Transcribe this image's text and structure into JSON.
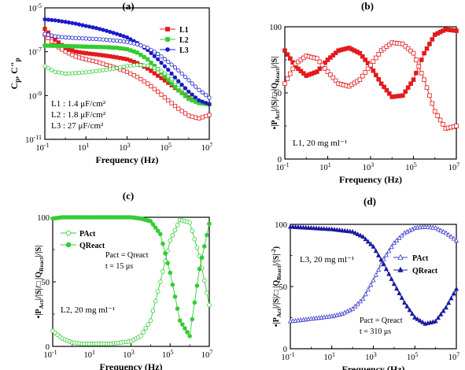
{
  "chart_data": [
    {
      "id": "a",
      "type": "scatter",
      "title": "(a)",
      "xlabel": "Frequency (Hz)",
      "ylabel": "C'p, C\"p",
      "xscale": "log",
      "yscale": "log",
      "xlim": [
        0.1,
        10000000
      ],
      "ylim": [
        1e-11,
        1e-05
      ],
      "xticks": [
        {
          "v": 0.1,
          "b": "10",
          "e": "-1"
        },
        {
          "v": 10,
          "b": "10",
          "e": "1"
        },
        {
          "v": 1000,
          "b": "10",
          "e": "3"
        },
        {
          "v": 100000,
          "b": "10",
          "e": "5"
        },
        {
          "v": 10000000,
          "b": "10",
          "e": "7"
        }
      ],
      "yticks": [
        {
          "v": 1e-11,
          "b": "10",
          "e": "-11"
        },
        {
          "v": 1e-09,
          "b": "10",
          "e": "-9"
        },
        {
          "v": 1e-07,
          "b": "10",
          "e": "-7"
        },
        {
          "v": 1e-05,
          "b": "10",
          "e": "-5"
        }
      ],
      "legend": "top-right",
      "annotations": [
        "L1 : 1.4 μF/cm²",
        "L2 : 1.8 μF/cm²",
        "L3 : 27 μF/cm²"
      ],
      "series": [
        {
          "name": "L1",
          "color": "#e31a1c",
          "marker": "square",
          "fill": true,
          "x": [
            0.1,
            0.316,
            1,
            3.16,
            10,
            31.6,
            100,
            316,
            1000,
            3160,
            10000,
            31600,
            100000,
            316000,
            1000000,
            3160000,
            10000000
          ],
          "y": [
            1.1e-06,
            3.5e-07,
            1.5e-07,
            1e-07,
            8.5e-08,
            7.5e-08,
            6.5e-08,
            5.5e-08,
            4.5e-08,
            3e-08,
            1.7e-08,
            8e-09,
            3.8e-09,
            1.7e-09,
            8e-10,
            5e-10,
            4e-10
          ]
        },
        {
          "name": "",
          "color": "#e31a1c",
          "marker": "square",
          "fill": false,
          "x": [
            0.1,
            0.316,
            1,
            3.16,
            10,
            31.6,
            100,
            316,
            1000,
            3160,
            10000,
            31600,
            100000,
            316000,
            1000000,
            3160000,
            10000000
          ],
          "y": [
            6e-07,
            2e-07,
            1e-07,
            6e-08,
            4.5e-08,
            3.5e-08,
            2.5e-08,
            1.8e-08,
            1.2e-08,
            7e-09,
            3.5e-09,
            1.5e-09,
            6e-10,
            2.5e-10,
            1.2e-10,
            9e-11,
            1.3e-10
          ]
        },
        {
          "name": "L2",
          "color": "#33cc33",
          "marker": "square",
          "fill": true,
          "x": [
            0.1,
            0.316,
            1,
            3.16,
            10,
            31.6,
            100,
            316,
            1000,
            3160,
            10000,
            31600,
            100000,
            316000,
            1000000,
            3160000,
            10000000
          ],
          "y": [
            1.9e-07,
            1.85e-07,
            1.8e-07,
            1.75e-07,
            1.7e-07,
            1.65e-07,
            1.6e-07,
            1.5e-07,
            1.3e-07,
            9e-08,
            4.5e-08,
            1.6e-08,
            5e-09,
            1.7e-09,
            7e-10,
            4.5e-10,
            4e-10
          ]
        },
        {
          "name": "",
          "color": "#33cc33",
          "marker": "circle",
          "fill": false,
          "x": [
            0.1,
            0.316,
            1,
            3.16,
            10,
            31.6,
            100,
            316,
            1000,
            3160,
            10000,
            31600,
            100000,
            316000,
            1000000,
            3160000,
            10000000
          ],
          "y": [
            2.2e-08,
            1.2e-08,
            1e-08,
            1.05e-08,
            1.15e-08,
            1.3e-08,
            1.5e-08,
            1.8e-08,
            2.2e-08,
            2.5e-08,
            2.3e-08,
            1.6e-08,
            8e-09,
            3e-09,
            1.2e-09,
            6e-10,
            4e-10
          ]
        },
        {
          "name": "L3",
          "color": "#1a1acc",
          "marker": "circle",
          "fill": true,
          "x": [
            0.1,
            0.316,
            1,
            3.16,
            10,
            31.6,
            100,
            316,
            1000,
            3160,
            10000,
            31600,
            100000,
            316000,
            1000000,
            3160000,
            10000000
          ],
          "y": [
            3e-06,
            2.7e-06,
            2.3e-06,
            1.9e-06,
            1.5e-06,
            1.2e-06,
            9e-07,
            6.5e-07,
            4.5e-07,
            2.5e-07,
            1.2e-07,
            4.5e-08,
            1.5e-08,
            4.5e-09,
            1.5e-09,
            6e-10,
            4e-10
          ]
        },
        {
          "name": "",
          "color": "#1a1acc",
          "marker": "circle",
          "fill": false,
          "x": [
            0.1,
            0.316,
            1,
            3.16,
            10,
            31.6,
            100,
            316,
            1000,
            3160,
            10000,
            31600,
            100000,
            316000,
            1000000,
            3160000,
            10000000
          ],
          "y": [
            6.5e-07,
            5e-07,
            4.5e-07,
            4.2e-07,
            4e-07,
            3.8e-07,
            3.5e-07,
            3.2e-07,
            2.8e-07,
            2.2e-07,
            1.5e-07,
            8e-08,
            3.5e-08,
            1.4e-08,
            5e-09,
            1.8e-09,
            8e-10
          ]
        }
      ]
    },
    {
      "id": "b",
      "type": "line",
      "title": "(b)",
      "xlabel": "Frequency (Hz)",
      "ylabel": "▪|PAct|/|S|/□ |QReact|/|S|",
      "xscale": "log",
      "xlim": [
        0.1,
        10000000
      ],
      "ylim": [
        0,
        100
      ],
      "xticks": [
        {
          "v": 0.1,
          "b": "10",
          "e": "-1"
        },
        {
          "v": 10,
          "b": "10",
          "e": "1"
        },
        {
          "v": 1000,
          "b": "10",
          "e": "3"
        },
        {
          "v": 100000,
          "b": "10",
          "e": "5"
        },
        {
          "v": 10000000,
          "b": "10",
          "e": "7"
        }
      ],
      "yticks": [
        0,
        50,
        100
      ],
      "annotations": [
        "L1, 20 mg ml⁻¹"
      ],
      "series": [
        {
          "name": "",
          "color": "#e31a1c",
          "marker": "square",
          "fill": true,
          "x": [
            0.1,
            0.316,
            1,
            3.16,
            10,
            31.6,
            100,
            316,
            1000,
            3160,
            10000,
            31600,
            100000,
            316000,
            1000000,
            3160000,
            10000000
          ],
          "y": [
            82,
            70,
            63,
            66,
            75,
            82,
            84,
            80,
            70,
            57,
            47,
            48,
            60,
            80,
            94,
            98,
            97
          ]
        },
        {
          "name": "",
          "color": "#e31a1c",
          "marker": "square",
          "fill": false,
          "x": [
            0.1,
            0.316,
            1,
            3.16,
            10,
            31.6,
            100,
            316,
            1000,
            3160,
            10000,
            31600,
            100000,
            316000,
            1000000,
            3160000,
            10000000
          ],
          "y": [
            57,
            72,
            78,
            76,
            66,
            57,
            55,
            60,
            71,
            82,
            88,
            87,
            80,
            60,
            36,
            23,
            25
          ]
        }
      ]
    },
    {
      "id": "c",
      "type": "line",
      "title": "(c)",
      "xlabel": "Frequency (Hz)",
      "ylabel": "▪|PAct|/|S|/□ |QReact|/|S|",
      "xscale": "log",
      "xlim": [
        0.1,
        10000000
      ],
      "ylim": [
        0,
        100
      ],
      "xticks": [
        {
          "v": 0.1,
          "b": "10",
          "e": "-1"
        },
        {
          "v": 10,
          "b": "10",
          "e": "1"
        },
        {
          "v": 1000,
          "b": "10",
          "e": "3"
        },
        {
          "v": 100000,
          "b": "10",
          "e": "5"
        },
        {
          "v": 10000000,
          "b": "10",
          "e": "7"
        }
      ],
      "yticks": [
        0,
        50,
        100
      ],
      "legend": "top-left",
      "annotations": [
        "Pact = Qreact",
        "t = 15 μs",
        "L2, 20 mg ml⁻¹"
      ],
      "series": [
        {
          "name": "PAct",
          "color": "#33cc33",
          "marker": "circle",
          "fill": false,
          "x": [
            0.1,
            0.316,
            1,
            3.16,
            10,
            31.6,
            100,
            316,
            1000,
            3160,
            10000,
            31600,
            100000,
            316000,
            1000000,
            3160000,
            10000000
          ],
          "y": [
            12,
            6,
            3,
            2,
            2,
            2,
            2,
            3,
            4,
            8,
            20,
            50,
            82,
            98,
            96,
            70,
            32
          ]
        },
        {
          "name": "QReact",
          "color": "#33cc33",
          "marker": "circle",
          "fill": true,
          "x": [
            0.1,
            0.316,
            1,
            3.16,
            10,
            31.6,
            100,
            316,
            1000,
            3160,
            10000,
            31600,
            100000,
            316000,
            1000000,
            3160000,
            10000000
          ],
          "y": [
            99,
            100,
            100,
            100,
            100,
            100,
            100,
            100,
            100,
            99,
            97,
            87,
            57,
            20,
            8,
            60,
            95
          ]
        }
      ]
    },
    {
      "id": "d",
      "type": "line",
      "title": "(d)",
      "xlabel": "Frequency (Hz)",
      "ylabel": "▪|PAct|/|S|/□ |QReact|/|S|⁻²)",
      "xscale": "log",
      "xlim": [
        0.1,
        10000000
      ],
      "ylim": [
        0,
        100
      ],
      "xticks": [
        {
          "v": 0.1,
          "b": "10",
          "e": "-1"
        },
        {
          "v": 10,
          "b": "10",
          "e": "1"
        },
        {
          "v": 1000,
          "b": "10",
          "e": "3"
        },
        {
          "v": 100000,
          "b": "10",
          "e": "5"
        },
        {
          "v": 10000000,
          "b": "10",
          "e": "7"
        }
      ],
      "yticks": [
        0,
        50,
        100
      ],
      "legend": "center-right",
      "annotations": [
        "L3, 20 mg ml⁻¹",
        "Pact = Qreact",
        "t = 310 μs"
      ],
      "series": [
        {
          "name": "PAct",
          "color": "#3c3ccc",
          "marker": "triangle",
          "fill": false,
          "x": [
            0.1,
            0.316,
            1,
            3.16,
            10,
            31.6,
            100,
            316,
            1000,
            3160,
            10000,
            31600,
            100000,
            316000,
            1000000,
            3160000,
            10000000
          ],
          "y": [
            22,
            23,
            24,
            25,
            26,
            28,
            32,
            40,
            55,
            72,
            85,
            93,
            97,
            98,
            97,
            93,
            87
          ]
        },
        {
          "name": "QReact",
          "color": "#1a1aa0",
          "marker": "triangle",
          "fill": true,
          "x": [
            0.1,
            0.316,
            1,
            3.16,
            10,
            31.6,
            100,
            316,
            1000,
            3160,
            10000,
            31600,
            100000,
            316000,
            1000000,
            3160000,
            10000000
          ],
          "y": [
            98,
            97.5,
            97,
            96.5,
            96,
            95,
            94,
            90,
            82,
            68,
            52,
            37,
            25,
            20,
            22,
            33,
            48
          ]
        }
      ]
    }
  ]
}
